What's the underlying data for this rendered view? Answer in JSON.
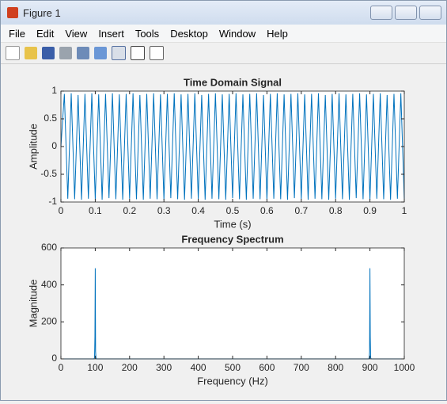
{
  "window": {
    "title": "Figure 1",
    "menu": [
      "File",
      "Edit",
      "View",
      "Insert",
      "Tools",
      "Desktop",
      "Window",
      "Help"
    ]
  },
  "chart_data": [
    {
      "type": "line",
      "title": "Time Domain Signal",
      "x_label": "Time (s)",
      "y_label": "Amplitude",
      "color": "#0072bd",
      "x": [
        0,
        0.01,
        0.02,
        0.03,
        0.04,
        0.05,
        0.06,
        0.07,
        0.08,
        0.09,
        0.1,
        0.11,
        0.12,
        0.13,
        0.14,
        0.15,
        0.16,
        0.17,
        0.18,
        0.19,
        0.2,
        0.21,
        0.22,
        0.23,
        0.24,
        0.25,
        0.26,
        0.27,
        0.28,
        0.29,
        0.3,
        0.31,
        0.32,
        0.33,
        0.34,
        0.35,
        0.36,
        0.37,
        0.38,
        0.39,
        0.4,
        0.41,
        0.42,
        0.43,
        0.44,
        0.45,
        0.46,
        0.47,
        0.48,
        0.49,
        0.5,
        0.51,
        0.52,
        0.53,
        0.54,
        0.55,
        0.56,
        0.57,
        0.58,
        0.59,
        0.6,
        0.61,
        0.62,
        0.63,
        0.64,
        0.65,
        0.66,
        0.67,
        0.68,
        0.69,
        0.7,
        0.71,
        0.72,
        0.73,
        0.74,
        0.75,
        0.76,
        0.77,
        0.78,
        0.79,
        0.8,
        0.81,
        0.82,
        0.83,
        0.84,
        0.85,
        0.86,
        0.87,
        0.88,
        0.89,
        0.9,
        0.91,
        0.92,
        0.93,
        0.94,
        0.95,
        0.96,
        0.97,
        0.98,
        0.99,
        1
      ],
      "values": [
        0,
        0.95,
        -0.94,
        0.96,
        -0.95,
        0.93,
        -0.96,
        0.95,
        -0.94,
        0.96,
        -0.95,
        0.94,
        -0.96,
        0.95,
        -0.93,
        0.96,
        -0.95,
        0.94,
        -0.96,
        0.95,
        -0.94,
        0.96,
        -0.95,
        0.93,
        -0.96,
        0.95,
        -0.94,
        0.96,
        -0.95,
        0.94,
        -0.96,
        0.95,
        -0.93,
        0.96,
        -0.95,
        0.94,
        -0.96,
        0.95,
        -0.94,
        0.96,
        -0.95,
        0.93,
        -0.96,
        0.95,
        -0.94,
        0.96,
        -0.95,
        0.94,
        -0.96,
        0.95,
        -0.93,
        0.96,
        -0.95,
        0.94,
        -0.96,
        0.95,
        -0.94,
        0.96,
        -0.95,
        0.93,
        -0.96,
        0.95,
        -0.94,
        0.96,
        -0.95,
        0.94,
        -0.96,
        0.95,
        -0.93,
        0.96,
        -0.95,
        0.94,
        -0.96,
        0.95,
        -0.94,
        0.96,
        -0.95,
        0.93,
        -0.96,
        0.95,
        -0.94,
        0.96,
        -0.95,
        0.94,
        -0.96,
        0.95,
        -0.93,
        0.96,
        -0.95,
        0.94,
        -0.96,
        0.95,
        -0.94,
        0.96,
        -0.95,
        0.93,
        -0.96,
        0.95,
        -0.94,
        0.96,
        -0.95
      ],
      "xlim": [
        0,
        1
      ],
      "ylim": [
        -1,
        1
      ],
      "xticks": [
        0,
        0.1,
        0.2,
        0.3,
        0.4,
        0.5,
        0.6,
        0.7,
        0.8,
        0.9,
        1
      ],
      "yticks": [
        -1,
        -0.5,
        0,
        0.5,
        1
      ]
    },
    {
      "type": "line",
      "title": "Frequency Spectrum",
      "x_label": "Frequency (Hz)",
      "y_label": "Magnitude",
      "color": "#0072bd",
      "x": [
        0,
        96,
        97,
        98,
        99,
        100,
        101,
        102,
        103,
        104,
        896,
        897,
        898,
        899,
        900,
        901,
        902,
        903,
        904,
        1000
      ],
      "values": [
        0,
        0,
        2,
        8,
        120,
        490,
        40,
        8,
        2,
        0,
        0,
        2,
        8,
        40,
        490,
        120,
        8,
        2,
        0,
        0
      ],
      "xlim": [
        0,
        1000
      ],
      "ylim": [
        0,
        600
      ],
      "xticks": [
        0,
        100,
        200,
        300,
        400,
        500,
        600,
        700,
        800,
        900,
        1000
      ],
      "yticks": [
        0,
        200,
        400,
        600
      ]
    }
  ]
}
